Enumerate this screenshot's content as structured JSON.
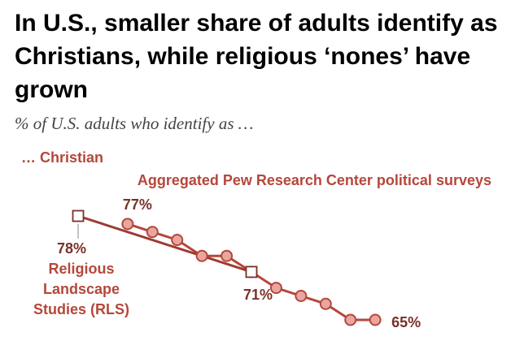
{
  "title": "In U.S., smaller share of adults identify as Christians, while religious ‘nones’ have grown",
  "subtitle": "% of U.S. adults who identify as …",
  "colors": {
    "accent": "#b5473a",
    "line": "#9e3b31",
    "marker_fill": "#e8a6a0",
    "rls_fill": "#ffffff"
  },
  "chart_data": {
    "type": "line",
    "title": "In U.S., smaller share of adults identify as Christians, while religious ‘nones’ have grown",
    "subtitle": "% of U.S. adults who identify as …",
    "panel_label": "… Christian",
    "xlabel": "",
    "ylabel": "",
    "grid": false,
    "legend": "none",
    "x_range": [
      2007,
      2021
    ],
    "ylim": [
      63,
      79
    ],
    "series": [
      {
        "name": "Aggregated Pew Research Center political surveys",
        "marker": "circle",
        "x": [
          2009,
          2010,
          2011,
          2012,
          2013,
          2014,
          2015,
          2016,
          2017,
          2018,
          2019
        ],
        "values": [
          77,
          76,
          75,
          73,
          73,
          71,
          69,
          68,
          67,
          65,
          65
        ]
      },
      {
        "name": "Religious Landscape Studies (RLS)",
        "marker": "square",
        "x": [
          2007,
          2014
        ],
        "values": [
          78,
          71
        ]
      }
    ],
    "annotations": [
      {
        "text": "77%",
        "series": 0,
        "point": 0
      },
      {
        "text": "65%",
        "series": 0,
        "point": 10
      },
      {
        "text": "78%",
        "series": 1,
        "point": 0
      },
      {
        "text": "71%",
        "series": 1,
        "point": 1
      }
    ],
    "series_labels": {
      "pew": "Aggregated Pew Research Center political surveys",
      "rls": [
        "Religious",
        "Landscape",
        "Studies (RLS)"
      ]
    }
  }
}
